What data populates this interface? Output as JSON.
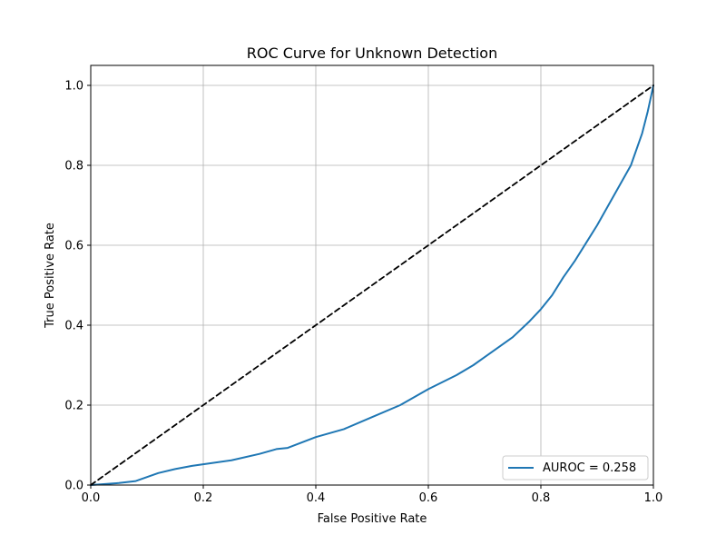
{
  "chart_data": {
    "type": "line",
    "title": "ROC Curve for Unknown Detection",
    "xlabel": "False Positive Rate",
    "ylabel": "True Positive Rate",
    "xlim": [
      0.0,
      1.0
    ],
    "ylim": [
      0.0,
      1.05
    ],
    "grid": true,
    "legend_position": "lower-right",
    "xticks": [
      "0.0",
      "0.2",
      "0.4",
      "0.6",
      "0.8",
      "1.0"
    ],
    "yticks": [
      "0.0",
      "0.2",
      "0.4",
      "0.6",
      "0.8",
      "1.0"
    ],
    "series": [
      {
        "name": "AUROC = 0.258",
        "color": "#1f77b4",
        "style": "solid",
        "x": [
          0.0,
          0.02,
          0.05,
          0.08,
          0.1,
          0.12,
          0.15,
          0.18,
          0.2,
          0.25,
          0.3,
          0.33,
          0.35,
          0.4,
          0.45,
          0.5,
          0.55,
          0.6,
          0.65,
          0.68,
          0.7,
          0.75,
          0.78,
          0.8,
          0.82,
          0.84,
          0.86,
          0.88,
          0.9,
          0.92,
          0.94,
          0.96,
          0.98,
          0.99,
          1.0
        ],
        "y": [
          0.0,
          0.002,
          0.005,
          0.01,
          0.02,
          0.03,
          0.04,
          0.048,
          0.052,
          0.062,
          0.078,
          0.09,
          0.093,
          0.12,
          0.14,
          0.17,
          0.2,
          0.24,
          0.275,
          0.3,
          0.32,
          0.37,
          0.41,
          0.44,
          0.475,
          0.52,
          0.56,
          0.605,
          0.65,
          0.7,
          0.75,
          0.8,
          0.88,
          0.935,
          1.0
        ]
      },
      {
        "name": "",
        "color": "#000000",
        "style": "dashed",
        "x": [
          0.0,
          1.0
        ],
        "y": [
          0.0,
          1.0
        ]
      }
    ]
  }
}
